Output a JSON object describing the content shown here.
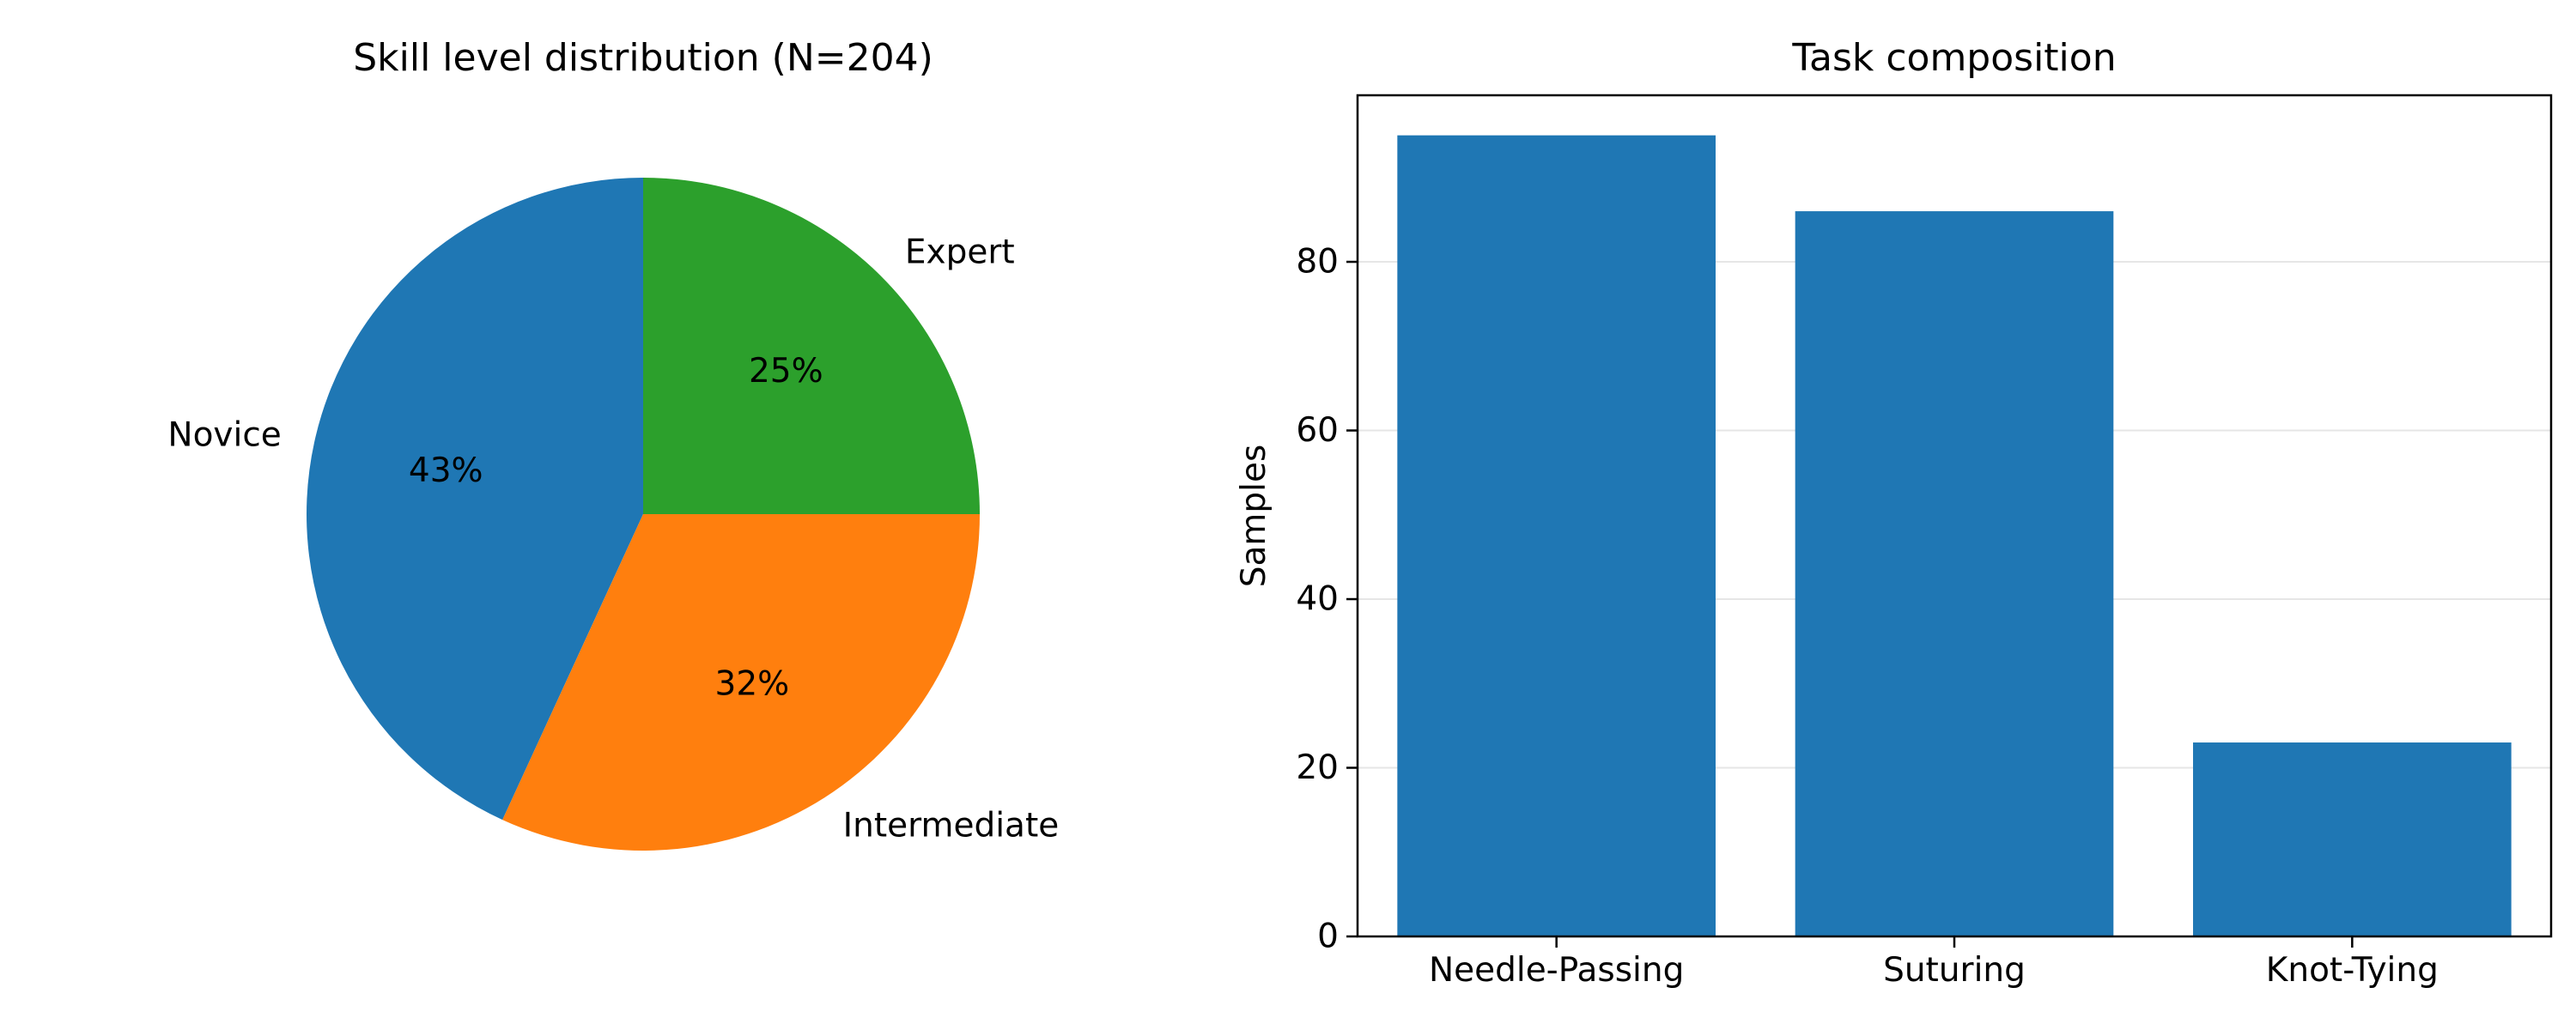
{
  "chart_data": [
    {
      "type": "pie",
      "title": "Skill level distribution (N=204)",
      "slices": [
        {
          "label": "Novice",
          "value": 88,
          "pct_label": "43%",
          "color": "#1f77b4"
        },
        {
          "label": "Intermediate",
          "value": 65,
          "pct_label": "32%",
          "color": "#ff7f0e"
        },
        {
          "label": "Expert",
          "value": 51,
          "pct_label": "25%",
          "color": "#2ca02c"
        }
      ]
    },
    {
      "type": "bar",
      "title": "Task composition",
      "categories": [
        "Needle-Passing",
        "Suturing",
        "Knot-Tying"
      ],
      "values": [
        95,
        86,
        23
      ],
      "color": "#1f77b4",
      "xlabel": "",
      "ylabel": "Samples",
      "ylim": [
        0,
        99.75
      ],
      "yticks": [
        0,
        20,
        40,
        60,
        80
      ],
      "grid": "y"
    }
  ]
}
